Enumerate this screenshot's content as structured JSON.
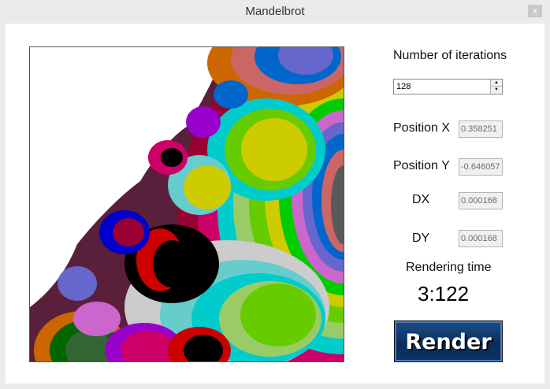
{
  "window": {
    "title": "Mandelbrot",
    "close_label": "x"
  },
  "controls": {
    "iterations_label": "Number of iterations",
    "iterations_value": "128",
    "position_x_label": "Position X",
    "position_x_value": "0.358251",
    "position_y_label": "Position Y",
    "position_y_value": "-0.646057",
    "dx_label": "DX",
    "dx_value": "0.000168",
    "dy_label": "DY",
    "dy_value": "0.000168",
    "rendering_time_label": "Rendering time",
    "rendering_time_value": "3:122",
    "render_button_label": "Render"
  },
  "fractal": {
    "palette": [
      "#5a5a5a",
      "#cc6666",
      "#0066cc",
      "#6666cc",
      "#cc66cc",
      "#00cc00",
      "#66cc00",
      "#cccc00",
      "#99cc66",
      "#66cccc",
      "#00cccc",
      "#cccccc",
      "#000000",
      "#cc0000",
      "#990033",
      "#cc0066",
      "#9900cc",
      "#0000cc",
      "#006600",
      "#336633",
      "#cc6600",
      "#00aaaa",
      "#ffffff"
    ]
  }
}
